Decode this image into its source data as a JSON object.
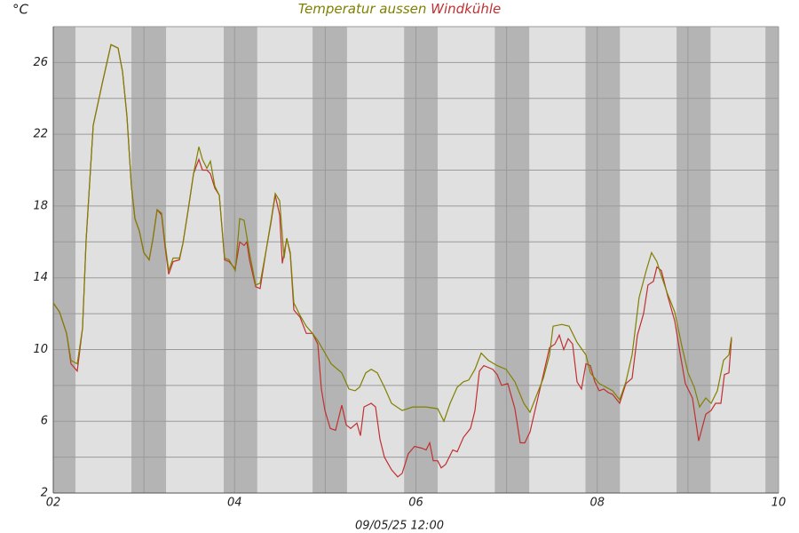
{
  "chart_data": {
    "type": "line",
    "y_label": "°C",
    "x_label": "09/05/25 12:00",
    "xlim": [
      2,
      10
    ],
    "xticks": [
      {
        "value": 2,
        "label": "02"
      },
      {
        "value": 4,
        "label": "04"
      },
      {
        "value": 6,
        "label": "06"
      },
      {
        "value": 8,
        "label": "08"
      },
      {
        "value": 10,
        "label": "10"
      }
    ],
    "xminorticks": [
      3,
      5,
      7,
      9
    ],
    "ylim": [
      2,
      28
    ],
    "yticks": [
      2,
      6,
      10,
      14,
      18,
      22,
      26
    ],
    "yminorticks": [
      4,
      8,
      12,
      16,
      20,
      24,
      28
    ],
    "grid": true,
    "night_bands": [
      [
        2,
        2.245
      ],
      [
        2.862,
        3.244
      ],
      [
        3.88,
        4.25
      ],
      [
        4.86,
        5.24
      ],
      [
        5.87,
        6.24
      ],
      [
        6.87,
        7.25
      ],
      [
        7.87,
        8.25
      ],
      [
        8.875,
        9.25
      ],
      [
        9.855,
        10
      ]
    ],
    "series": [
      {
        "name": "Temperatur aussen",
        "color": "#808000",
        "x": [
          2.0,
          2.069,
          2.147,
          2.196,
          2.264,
          2.323,
          2.362,
          2.441,
          2.539,
          2.636,
          2.715,
          2.764,
          2.813,
          2.862,
          2.901,
          2.95,
          2.999,
          3.058,
          3.097,
          3.146,
          3.195,
          3.234,
          3.273,
          3.322,
          3.391,
          3.43,
          3.488,
          3.547,
          3.606,
          3.645,
          3.694,
          3.733,
          3.782,
          3.831,
          3.89,
          3.939,
          4.007,
          4.056,
          4.105,
          4.164,
          4.233,
          4.282,
          4.35,
          4.399,
          4.448,
          4.497,
          4.546,
          4.575,
          4.614,
          4.654,
          4.722,
          4.791,
          4.859,
          4.918,
          4.987,
          5.065,
          5.182,
          5.261,
          5.329,
          5.378,
          5.447,
          5.506,
          5.574,
          5.652,
          5.731,
          5.848,
          5.966,
          6.113,
          6.24,
          6.308,
          6.377,
          6.455,
          6.524,
          6.583,
          6.651,
          6.72,
          6.798,
          6.896,
          6.994,
          7.092,
          7.19,
          7.258,
          7.327,
          7.405,
          7.474,
          7.513,
          7.611,
          7.689,
          7.777,
          7.875,
          7.924,
          8.022,
          8.169,
          8.247,
          8.316,
          8.384,
          8.462,
          8.54,
          8.599,
          8.658,
          8.707,
          8.776,
          8.854,
          8.933,
          9.001,
          9.07,
          9.129,
          9.197,
          9.256,
          9.324,
          9.393,
          9.452,
          9.481
        ],
        "values": [
          12.6,
          12.1,
          10.9,
          9.4,
          9.2,
          11.2,
          16.1,
          22.5,
          24.8,
          27.0,
          26.8,
          25.5,
          23.0,
          19.1,
          17.3,
          16.6,
          15.4,
          15.0,
          16.1,
          17.8,
          17.6,
          15.9,
          14.4,
          15.1,
          15.1,
          15.9,
          17.8,
          19.8,
          21.3,
          20.6,
          20.1,
          20.5,
          19.1,
          18.6,
          15.1,
          15.0,
          14.4,
          17.3,
          17.2,
          15.4,
          13.6,
          13.7,
          15.6,
          17.1,
          18.7,
          18.3,
          15.1,
          16.2,
          15.4,
          12.6,
          11.9,
          11.3,
          10.9,
          10.5,
          9.9,
          9.2,
          8.7,
          7.8,
          7.7,
          7.9,
          8.7,
          8.9,
          8.7,
          7.9,
          7.0,
          6.6,
          6.8,
          6.8,
          6.7,
          6.0,
          7.0,
          7.9,
          8.2,
          8.3,
          8.9,
          9.8,
          9.4,
          9.1,
          8.9,
          8.2,
          7.0,
          6.5,
          7.4,
          8.4,
          9.7,
          11.3,
          11.4,
          11.3,
          10.4,
          9.7,
          8.7,
          8.1,
          7.7,
          7.2,
          8.2,
          9.7,
          12.9,
          14.4,
          15.4,
          14.9,
          14.1,
          13.1,
          12.1,
          10.2,
          8.7,
          7.9,
          6.8,
          7.3,
          7.0,
          7.7,
          9.4,
          9.7,
          10.7
        ]
      },
      {
        "name": "Windkühle",
        "color": "#c03030",
        "x": [
          2.0,
          2.069,
          2.147,
          2.196,
          2.264,
          2.323,
          2.362,
          2.441,
          2.539,
          2.636,
          2.715,
          2.764,
          2.813,
          2.862,
          2.901,
          2.95,
          2.999,
          3.058,
          3.097,
          3.146,
          3.195,
          3.234,
          3.273,
          3.322,
          3.391,
          3.43,
          3.488,
          3.547,
          3.606,
          3.645,
          3.694,
          3.733,
          3.782,
          3.831,
          3.89,
          3.939,
          4.007,
          4.056,
          4.105,
          4.135,
          4.164,
          4.233,
          4.282,
          4.35,
          4.399,
          4.448,
          4.497,
          4.526,
          4.575,
          4.614,
          4.654,
          4.722,
          4.791,
          4.859,
          4.918,
          4.957,
          4.996,
          5.055,
          5.114,
          5.182,
          5.231,
          5.28,
          5.349,
          5.388,
          5.427,
          5.506,
          5.554,
          5.603,
          5.652,
          5.731,
          5.799,
          5.848,
          5.917,
          5.985,
          6.064,
          6.113,
          6.152,
          6.191,
          6.24,
          6.279,
          6.328,
          6.406,
          6.455,
          6.524,
          6.602,
          6.651,
          6.7,
          6.749,
          6.847,
          6.896,
          6.945,
          7.013,
          7.092,
          7.151,
          7.2,
          7.258,
          7.327,
          7.405,
          7.474,
          7.532,
          7.581,
          7.63,
          7.679,
          7.728,
          7.777,
          7.826,
          7.875,
          7.924,
          7.973,
          8.022,
          8.071,
          8.12,
          8.169,
          8.247,
          8.316,
          8.384,
          8.443,
          8.511,
          8.56,
          8.619,
          8.658,
          8.707,
          8.776,
          8.854,
          8.913,
          8.972,
          9.05,
          9.119,
          9.197,
          9.256,
          9.305,
          9.364,
          9.403,
          9.452,
          9.481
        ],
        "values": [
          12.6,
          12.1,
          10.9,
          9.2,
          8.8,
          11.2,
          16.1,
          22.5,
          24.8,
          27.0,
          26.8,
          25.5,
          23.0,
          19.1,
          17.3,
          16.6,
          15.4,
          15.0,
          16.1,
          17.8,
          17.5,
          15.7,
          14.2,
          14.9,
          15.0,
          15.9,
          17.8,
          19.8,
          20.6,
          20.0,
          20.0,
          19.8,
          19.0,
          18.6,
          15.0,
          14.9,
          14.5,
          16.0,
          15.8,
          16.0,
          15.0,
          13.5,
          13.4,
          15.6,
          17.0,
          18.6,
          17.5,
          14.8,
          16.2,
          15.3,
          12.2,
          11.8,
          10.9,
          10.9,
          10.3,
          7.8,
          6.6,
          5.6,
          5.5,
          6.9,
          5.8,
          5.6,
          5.9,
          5.2,
          6.8,
          7.0,
          6.8,
          5.0,
          4.0,
          3.3,
          2.9,
          3.1,
          4.2,
          4.6,
          4.5,
          4.4,
          4.8,
          3.8,
          3.8,
          3.4,
          3.6,
          4.4,
          4.3,
          5.1,
          5.6,
          6.6,
          8.8,
          9.1,
          8.9,
          8.6,
          8.0,
          8.1,
          6.7,
          4.8,
          4.8,
          5.4,
          6.9,
          8.6,
          10.1,
          10.3,
          10.8,
          10.0,
          10.6,
          10.3,
          8.2,
          7.8,
          9.2,
          9.1,
          8.2,
          7.7,
          7.8,
          7.6,
          7.5,
          7.0,
          8.1,
          8.4,
          10.8,
          12.0,
          13.6,
          13.8,
          14.6,
          14.4,
          13.0,
          11.6,
          9.8,
          8.1,
          7.3,
          4.9,
          6.4,
          6.6,
          7.0,
          7.0,
          8.6,
          8.7,
          10.6
        ]
      }
    ]
  }
}
